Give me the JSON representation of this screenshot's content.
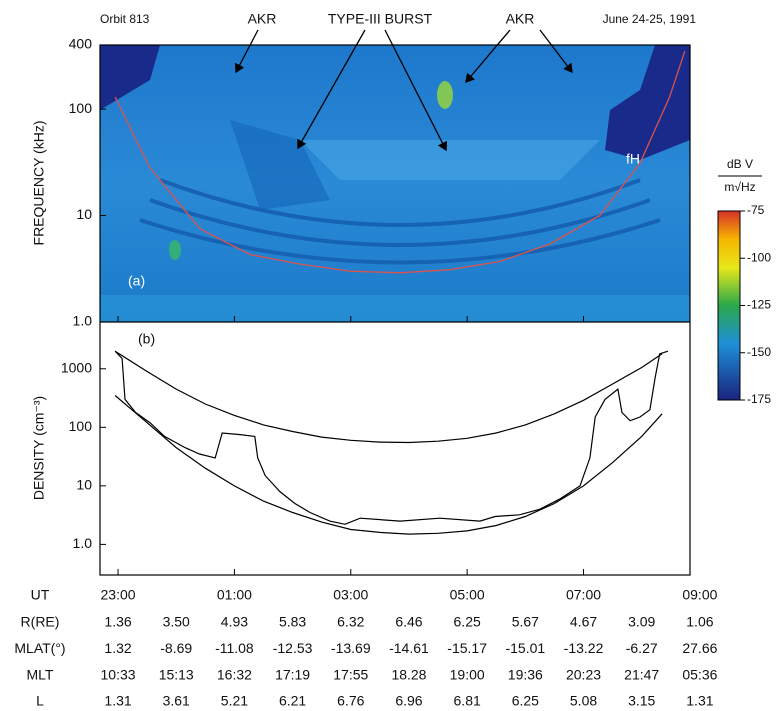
{
  "header": {
    "left": "Orbit 813",
    "right": "June 24-25, 1991"
  },
  "chart_data": [
    {
      "type": "spectrogram",
      "ylabel": "FREQUENCY (kHz)",
      "panel_label": "(a)",
      "log_y": true,
      "xlim": [
        22.69,
        32.83
      ],
      "ylim": [
        1,
        400
      ],
      "yticks": [
        {
          "value": 1,
          "label": "1.0"
        },
        10,
        100,
        400
      ],
      "annotations": [
        "AKR",
        "TYPE-III BURST",
        "AKR"
      ],
      "series": [
        {
          "name": "fH",
          "color": "#d9534f",
          "x": [
            22.95,
            23.55,
            24.41,
            25.27,
            26.13,
            26.99,
            27.85,
            28.7,
            29.56,
            30.42,
            31.28,
            31.97,
            32.48,
            32.74
          ],
          "values": [
            130,
            28,
            7.5,
            4.3,
            3.5,
            3.0,
            2.9,
            3.1,
            3.7,
            5.4,
            10,
            31,
            130,
            350
          ]
        }
      ],
      "colorbar": {
        "label_top": "dB V",
        "label_bottom": "m√Hz",
        "lim": [
          -175,
          -75
        ],
        "ticks": [
          -75,
          -100,
          -125,
          -150,
          -175
        ]
      }
    },
    {
      "type": "line",
      "ylabel": "DENSITY (cm⁻³)",
      "panel_label": "(b)",
      "log_y": true,
      "xlim": [
        22.69,
        32.83
      ],
      "ylim": [
        0.3,
        6300
      ],
      "yticks": [
        {
          "value": 1,
          "label": "1.0"
        },
        10,
        100,
        1000
      ],
      "xticks": [
        {
          "value": 23,
          "label": "23:00"
        },
        {
          "value": 25,
          "label": "01:00"
        },
        {
          "value": 27,
          "label": "03:00"
        },
        {
          "value": 29,
          "label": "05:00"
        },
        {
          "value": 31,
          "label": "07:00"
        },
        {
          "value": 33,
          "label": "09:00"
        }
      ],
      "series": [
        {
          "color": "#000000",
          "x": [
            22.95,
            23.5,
            24,
            24.5,
            25,
            25.5,
            26,
            26.5,
            27,
            27.5,
            28,
            28.5,
            29,
            29.5,
            30,
            30.5,
            31,
            31.5,
            32,
            32.35
          ],
          "values": [
            2000,
            900,
            450,
            250,
            160,
            110,
            85,
            68,
            60,
            56,
            55,
            58,
            65,
            80,
            110,
            170,
            290,
            550,
            1050,
            1800
          ]
        },
        {
          "color": "#000000",
          "x": [
            22.95,
            23.5,
            24,
            24.5,
            25,
            25.5,
            26,
            26.5,
            27,
            27.5,
            28,
            28.5,
            29,
            29.5,
            30,
            30.5,
            31,
            31.5,
            32,
            32.35
          ],
          "values": [
            350,
            120,
            45,
            20,
            10,
            5.5,
            3.5,
            2.4,
            1.8,
            1.6,
            1.5,
            1.55,
            1.7,
            2.1,
            3,
            5,
            10,
            25,
            70,
            170
          ]
        },
        {
          "color": "#000000",
          "x": [
            22.95,
            23.07,
            23.12,
            23.3,
            23.55,
            23.8,
            24.15,
            24.4,
            24.67,
            24.79,
            25.1,
            25.35,
            25.4,
            25.53,
            25.78,
            26.04,
            26.3,
            26.64,
            26.9,
            27.16,
            27.85,
            28.53,
            29.22,
            29.48,
            29.9,
            30.25,
            30.6,
            30.94,
            31.11,
            31.2,
            31.37,
            31.59,
            31.66,
            31.8,
            31.97,
            32.14,
            32.23,
            32.31,
            32.45
          ],
          "values": [
            2000,
            1500,
            300,
            180,
            120,
            70,
            45,
            35,
            30,
            80,
            75,
            70,
            30,
            15,
            8,
            5,
            3.5,
            2.5,
            2.2,
            2.8,
            2.5,
            2.8,
            2.5,
            3.0,
            3.2,
            4,
            6,
            10,
            30,
            150,
            300,
            450,
            180,
            130,
            150,
            200,
            700,
            1800,
            2000
          ]
        }
      ]
    }
  ],
  "table": {
    "rows": [
      {
        "label": "R(RE)",
        "cells": [
          "1.36",
          "3.50",
          "4.93",
          "5.83",
          "6.32",
          "6.46",
          "6.25",
          "5.67",
          "4.67",
          "3.09",
          "1.06"
        ]
      },
      {
        "label": "MLAT(°)",
        "cells": [
          "1.32",
          "-8.69",
          "-11.08",
          "-12.53",
          "-13.69",
          "-14.61",
          "-15.17",
          "-15.01",
          "-13.22",
          "-6.27",
          "27.66"
        ]
      },
      {
        "label": "MLT",
        "cells": [
          "10:33",
          "15:13",
          "16:32",
          "17:19",
          "17:55",
          "18.28",
          "19:00",
          "19:36",
          "20:23",
          "21:47",
          "05:36"
        ]
      },
      {
        "label": "L",
        "cells": [
          "1.31",
          "3.61",
          "5.21",
          "6.21",
          "6.76",
          "6.96",
          "6.81",
          "6.25",
          "5.08",
          "3.15",
          "1.31"
        ]
      }
    ],
    "ut_label": "UT"
  }
}
